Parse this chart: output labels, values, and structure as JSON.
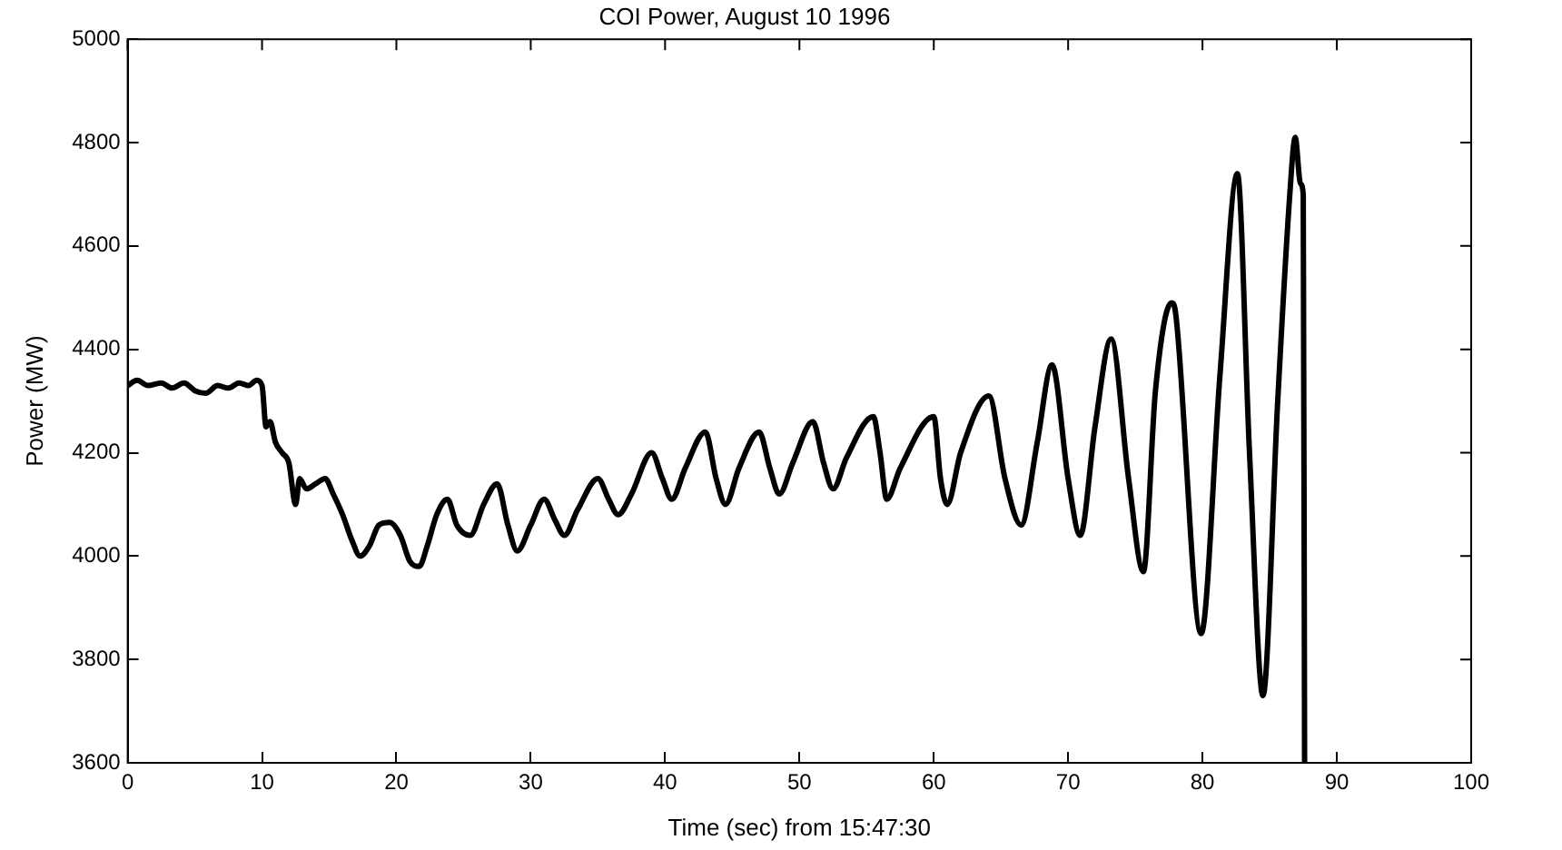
{
  "chart_data": {
    "type": "line",
    "title": "COI Power, August 10 1996",
    "xlabel": "Time (sec) from 15:47:30",
    "ylabel": "Power (MW)",
    "xlim": [
      0,
      100
    ],
    "xticks": [
      0,
      10,
      20,
      30,
      40,
      50,
      60,
      70,
      80,
      90,
      100
    ],
    "ylim": [
      3600,
      5000
    ],
    "yticks": [
      3600,
      3800,
      4000,
      4200,
      4400,
      4600,
      4800,
      5000
    ],
    "grid": false,
    "legend": false,
    "marker": "none",
    "line_style": "solid",
    "series": [
      {
        "color": "#000000",
        "x": [
          0,
          0.7,
          1.5,
          2.5,
          3.3,
          4.2,
          5,
          5.8,
          6.7,
          7.5,
          8.3,
          9,
          9.6,
          10,
          10.3,
          10.6,
          11,
          11.5,
          12,
          12.5,
          12.8,
          13.3,
          14,
          14.7,
          15.3,
          16,
          16.7,
          17.3,
          18,
          18.7,
          19.5,
          20.3,
          21,
          21.7,
          22.3,
          23,
          23.8,
          24.5,
          25.5,
          26.5,
          27.5,
          28.3,
          29,
          30,
          31,
          31.8,
          32.5,
          33.5,
          35,
          35.8,
          36.5,
          37.5,
          39,
          39.8,
          40.5,
          41.5,
          43,
          43.8,
          44.5,
          45.5,
          47,
          47.8,
          48.5,
          49.5,
          51,
          51.8,
          52.5,
          53.5,
          55.5,
          56,
          56.5,
          57.5,
          60,
          60.5,
          61,
          62,
          64.1,
          65.3,
          66.5,
          67.7,
          68.8,
          70,
          70.9,
          72,
          73.2,
          74.5,
          75.6,
          76.5,
          77.7,
          78,
          79.9,
          81.3,
          82.6,
          83.5,
          84.5,
          85.6,
          86.5,
          86.9,
          87.3,
          87.5,
          87.6
        ],
        "values": [
          4330,
          4340,
          4330,
          4335,
          4325,
          4335,
          4320,
          4315,
          4330,
          4325,
          4335,
          4330,
          4340,
          4330,
          4250,
          4260,
          4220,
          4200,
          4180,
          4100,
          4150,
          4130,
          4140,
          4150,
          4120,
          4080,
          4030,
          4000,
          4020,
          4060,
          4065,
          4040,
          3990,
          3980,
          4020,
          4080,
          4110,
          4060,
          4040,
          4100,
          4140,
          4060,
          4010,
          4060,
          4110,
          4070,
          4040,
          4090,
          4150,
          4110,
          4080,
          4120,
          4200,
          4150,
          4110,
          4170,
          4240,
          4150,
          4100,
          4170,
          4240,
          4170,
          4120,
          4180,
          4260,
          4180,
          4130,
          4190,
          4270,
          4200,
          4110,
          4170,
          4270,
          4150,
          4100,
          4200,
          4310,
          4150,
          4060,
          4220,
          4370,
          4150,
          4040,
          4250,
          4420,
          4150,
          3970,
          4320,
          4490,
          4470,
          3850,
          4350,
          4740,
          4200,
          3730,
          4300,
          4700,
          4810,
          4720,
          4700,
          3600
        ]
      }
    ]
  }
}
